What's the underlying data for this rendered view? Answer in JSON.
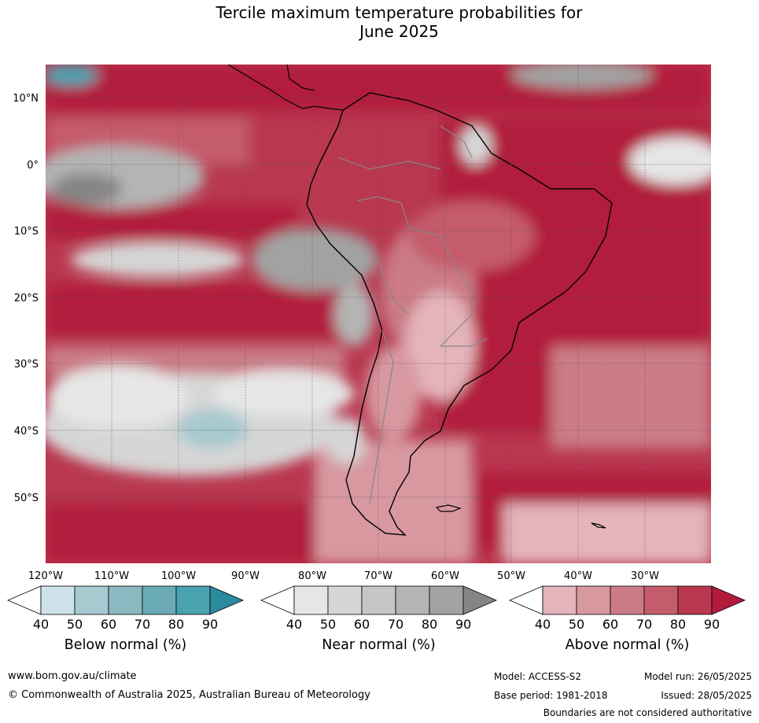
{
  "title": {
    "line1": "Tercile maximum temperature probabilities for",
    "line2": "June 2025"
  },
  "map": {
    "region": "South America",
    "lat_labels": [
      "10°N",
      "0°",
      "10°S",
      "20°S",
      "30°S",
      "40°S",
      "50°S"
    ],
    "lon_labels": [
      "120°W",
      "110°W",
      "100°W",
      "90°W",
      "80°W",
      "70°W",
      "60°W",
      "50°W",
      "40°W",
      "30°W"
    ],
    "gridlines": true
  },
  "legend": {
    "ticks": [
      "40",
      "50",
      "60",
      "70",
      "80",
      "90"
    ],
    "below": {
      "label": "Below normal (%)",
      "colors": [
        "#ffffff",
        "#cde3e9",
        "#a7c9d0",
        "#8ab9c1",
        "#6aaab7",
        "#4aa1b0",
        "#2a8a9e"
      ]
    },
    "near": {
      "label": "Near normal (%)",
      "colors": [
        "#ffffff",
        "#e6e6e6",
        "#d6d6d6",
        "#c6c6c6",
        "#b4b4b4",
        "#a2a2a2",
        "#858585"
      ]
    },
    "above": {
      "label": "Above normal (%)",
      "colors": [
        "#ffffff",
        "#e3b4ba",
        "#d798a0",
        "#cb7b86",
        "#c45c6c",
        "#b9384f",
        "#b21c3c"
      ]
    }
  },
  "footer": {
    "url": "www.bom.gov.au/climate",
    "copyright": "© Commonwealth of Australia 2025, Australian Bureau of Meteorology",
    "model": "Model: ACCESS-S2",
    "base_period": "Base period: 1981-2018",
    "model_run": "Model run: 26/05/2025",
    "issued": "Issued: 28/05/2025",
    "disclaimer": "Boundaries are not considered authoritative"
  }
}
